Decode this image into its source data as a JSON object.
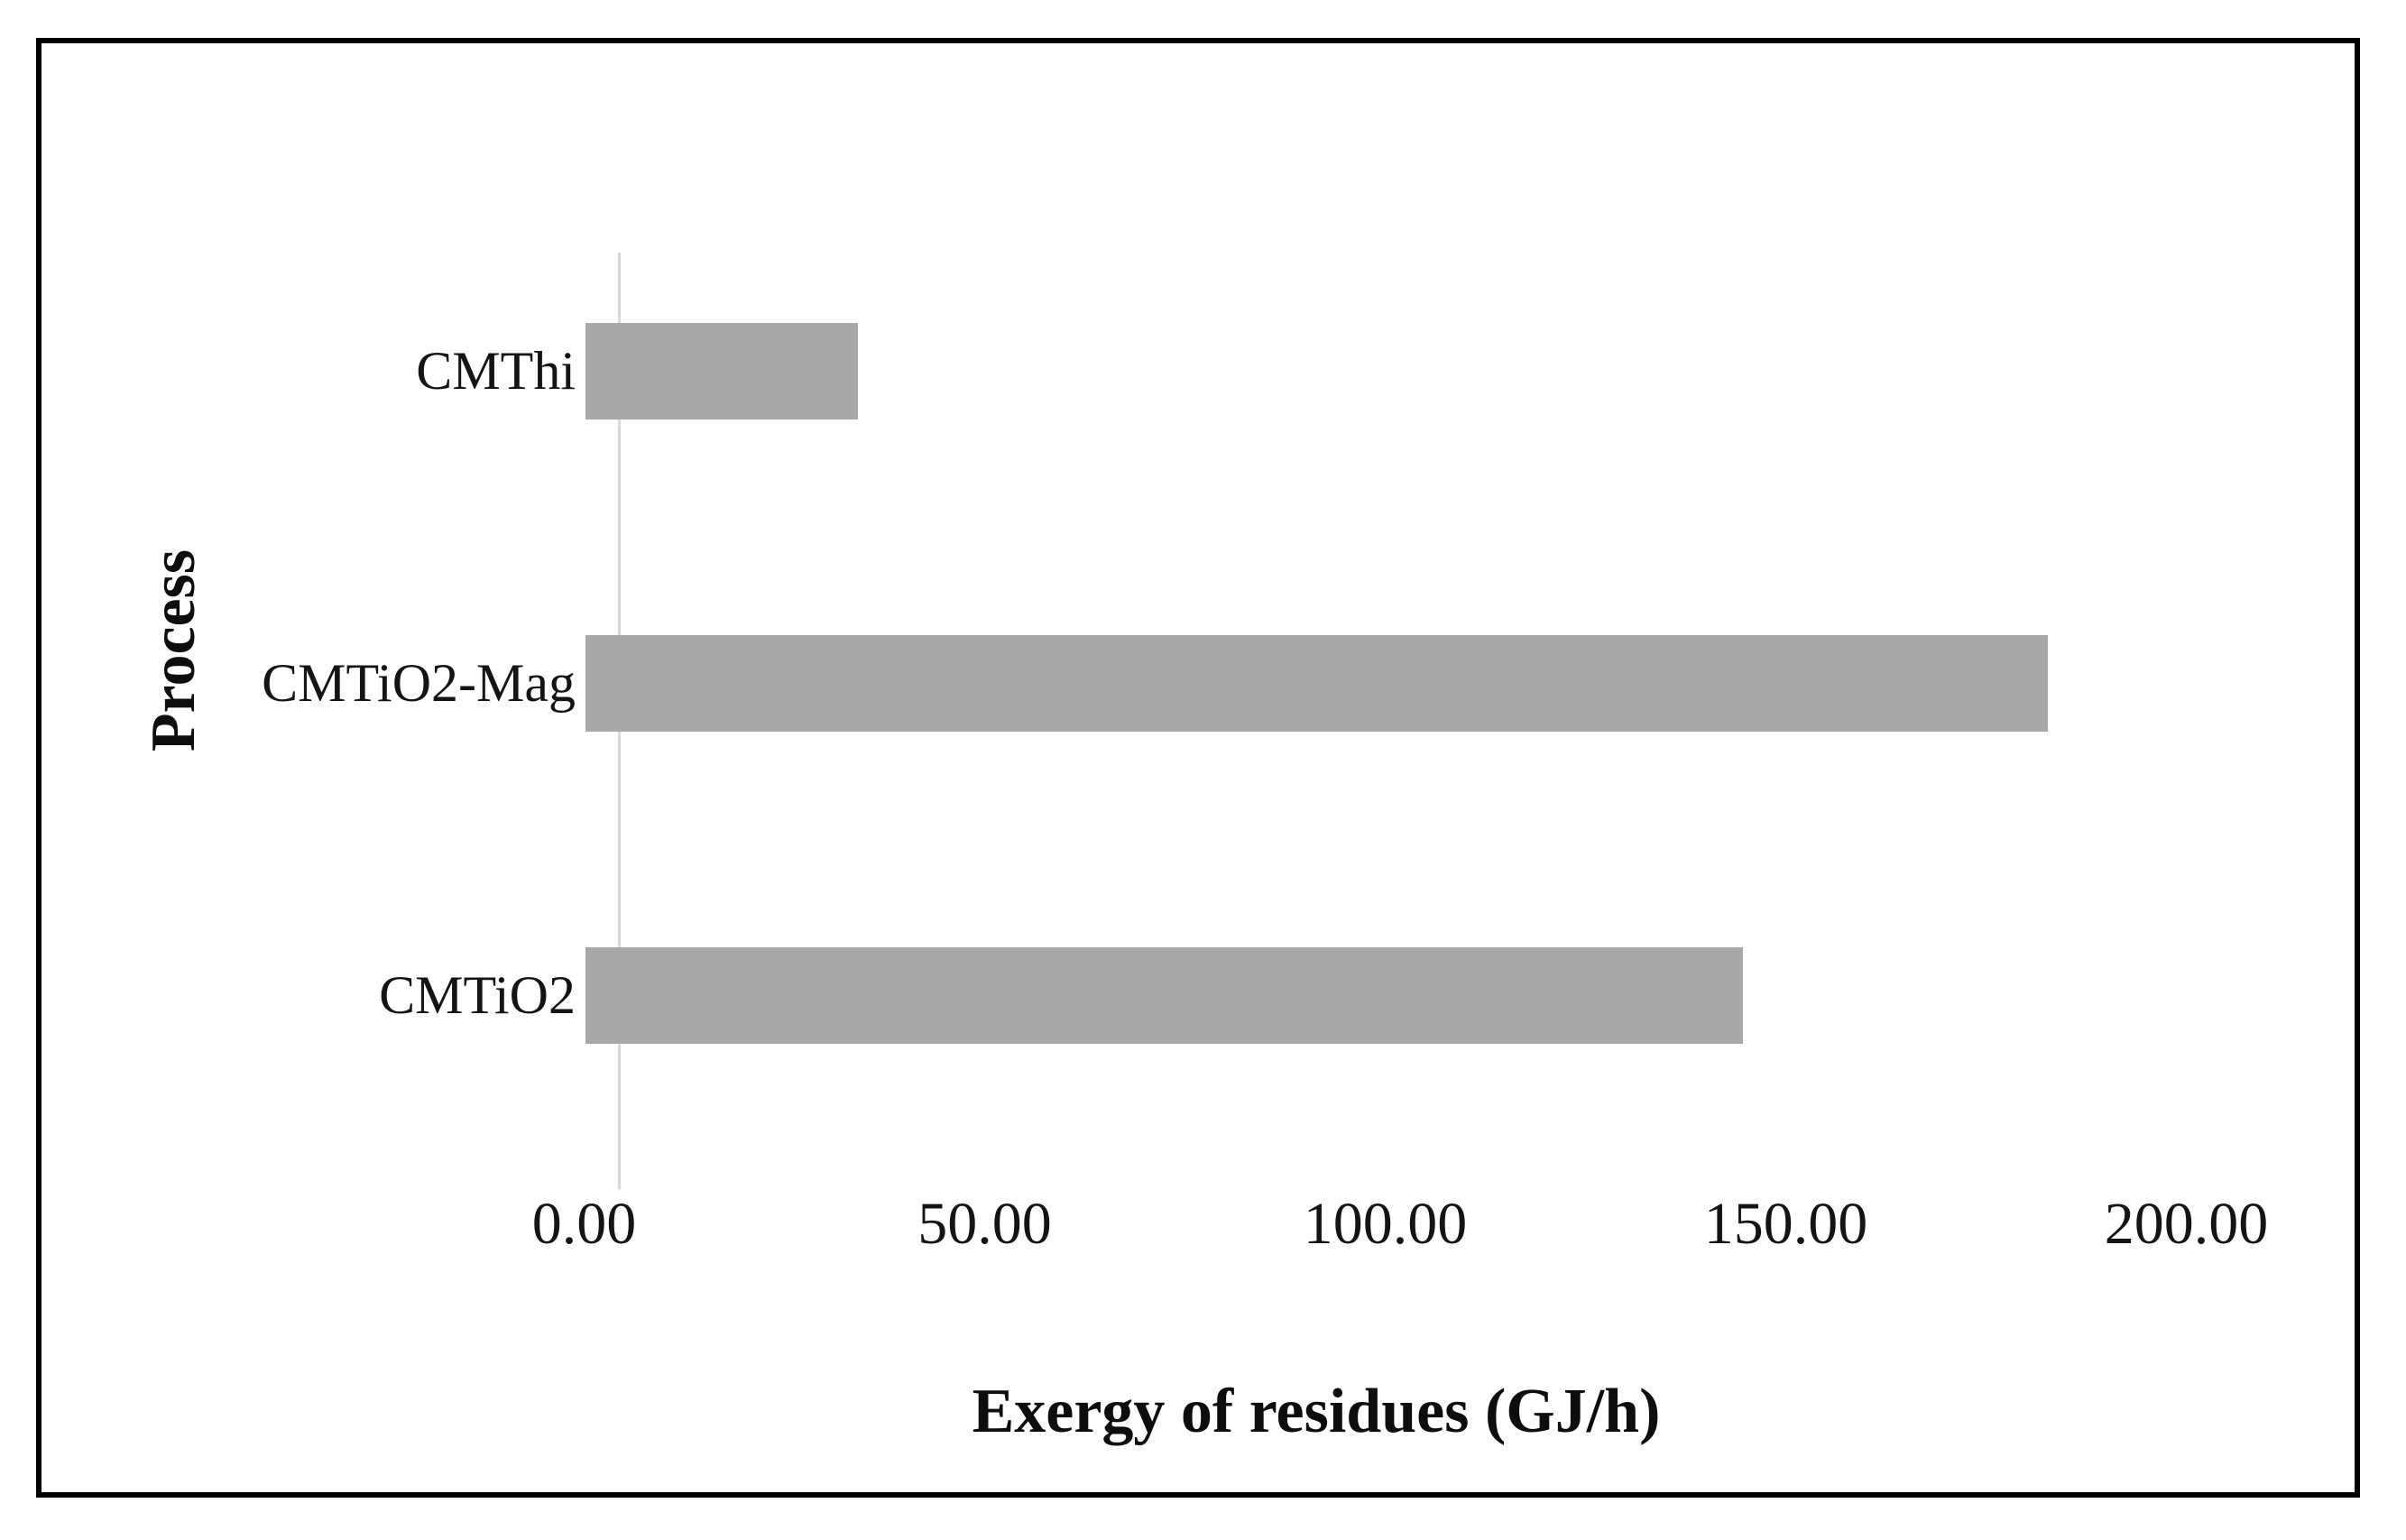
{
  "chart_data": {
    "type": "bar",
    "orientation": "horizontal",
    "title": "",
    "xlabel": "Exergy of residues (GJ/h)",
    "ylabel": "Process",
    "categories": [
      "CMThi",
      "CMTiO2-Mag",
      "CMTiO2"
    ],
    "values": [
      34.0,
      182.5,
      144.5
    ],
    "category_order": "top_to_bottom",
    "xlim": [
      0,
      200
    ],
    "xticks": [
      {
        "value": 0,
        "label": "0.00"
      },
      {
        "value": 50,
        "label": "50.00"
      },
      {
        "value": 100,
        "label": "100.00"
      },
      {
        "value": 150,
        "label": "150.00"
      },
      {
        "value": 200,
        "label": "200.00"
      }
    ],
    "grid": false,
    "legend": false,
    "bar_color": "#a8a8a8",
    "axis_line_color": "#d9d9d9",
    "text_color": "#141414",
    "frame_border_color": "#000000",
    "background_color": "#ffffff"
  }
}
